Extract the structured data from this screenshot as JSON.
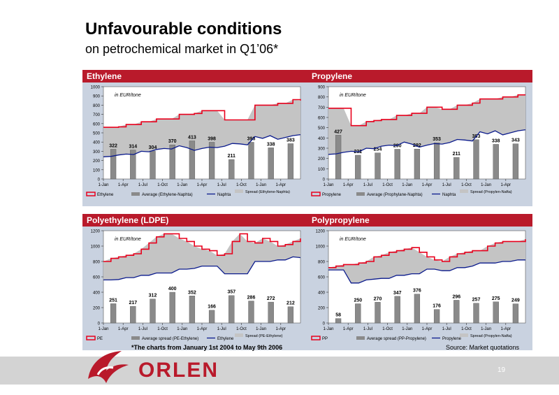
{
  "header": {
    "title": "Unfavourable conditions",
    "subtitle": "on petrochemical market in Q1’06*"
  },
  "footer": {
    "note": "*The charts from January 1st 2004 to May 9th 2006",
    "source": "Source: Market quotations",
    "brand": "ORLEN",
    "page": "19"
  },
  "colors": {
    "price_line": "#e8001c",
    "spread_fill": "#c4c4c4",
    "avg_bar": "#8a8a8a",
    "feed_line": "#0a1a8c",
    "header_bg": "#b91a2b",
    "panel_bg": "#c9d2e0",
    "plot_bg": "#ffffff"
  },
  "chart_data": [
    {
      "id": "ethylene",
      "type": "area",
      "title": "Ethylene",
      "unit_note": "in EUR/tone",
      "ylim": [
        0,
        1000
      ],
      "yticks": [
        0,
        100,
        200,
        300,
        400,
        500,
        600,
        700,
        800,
        900,
        1000
      ],
      "xticks": [
        "1-Jan",
        "1-Apr",
        "1-Jul",
        "1-Oct",
        "1-Jan",
        "1-Apr",
        "1-Jul",
        "1-Oct",
        "1-Jan",
        "1-Apr"
      ],
      "legend": {
        "price": "Ethylene",
        "avg": "Average (Ethylene-Naphta)",
        "feed": "Naphta",
        "spread": "Spread (Ethylene-Naphta)"
      },
      "price": [
        560,
        560,
        565,
        590,
        590,
        620,
        620,
        650,
        650,
        650,
        700,
        700,
        710,
        740,
        740,
        740,
        640,
        640,
        640,
        640,
        800,
        800,
        800,
        820,
        820,
        860,
        850
      ],
      "feed": [
        240,
        245,
        260,
        270,
        265,
        300,
        295,
        320,
        330,
        325,
        360,
        340,
        310,
        330,
        345,
        340,
        355,
        385,
        380,
        370,
        460,
        440,
        470,
        430,
        450,
        470,
        480
      ],
      "quarterly_avg": [
        {
          "x": 0.5,
          "value": 322
        },
        {
          "x": 1.5,
          "value": 314
        },
        {
          "x": 2.5,
          "value": 304
        },
        {
          "x": 3.5,
          "value": 370
        },
        {
          "x": 4.5,
          "value": 413
        },
        {
          "x": 5.5,
          "value": 398
        },
        {
          "x": 6.5,
          "value": 211
        },
        {
          "x": 7.5,
          "value": 398
        },
        {
          "x": 8.5,
          "value": 338
        },
        {
          "x": 9.5,
          "value": 383
        }
      ]
    },
    {
      "id": "propylene",
      "type": "area",
      "title": "Propylene",
      "unit_note": "in EUR/tone",
      "ylim": [
        0,
        900
      ],
      "yticks": [
        0,
        100,
        200,
        300,
        400,
        500,
        600,
        700,
        800,
        900
      ],
      "xticks": [
        "1-Jan",
        "1-Apr",
        "1-Jul",
        "1-Oct",
        "1-Jan",
        "1-Apr",
        "1-Jul",
        "1-Oct",
        "1-Jan",
        "1-Apr"
      ],
      "legend": {
        "price": "Propylene",
        "avg": "Average (Prophylane-Naphta)",
        "feed": "Naphta",
        "spread": "Spread (Propylen-Nafta)"
      },
      "price": [
        690,
        690,
        690,
        520,
        520,
        560,
        570,
        580,
        580,
        620,
        620,
        640,
        640,
        700,
        700,
        680,
        680,
        720,
        720,
        740,
        780,
        780,
        780,
        800,
        800,
        820,
        820
      ],
      "feed": [
        240,
        245,
        260,
        270,
        265,
        300,
        295,
        320,
        330,
        325,
        360,
        340,
        310,
        330,
        345,
        340,
        355,
        385,
        380,
        370,
        460,
        440,
        470,
        430,
        450,
        470,
        480
      ],
      "quarterly_avg": [
        {
          "x": 0.5,
          "value": 427
        },
        {
          "x": 1.5,
          "value": 232
        },
        {
          "x": 2.5,
          "value": 254
        },
        {
          "x": 3.5,
          "value": 290
        },
        {
          "x": 4.5,
          "value": 292
        },
        {
          "x": 5.5,
          "value": 353
        },
        {
          "x": 6.5,
          "value": 211
        },
        {
          "x": 7.5,
          "value": 383
        },
        {
          "x": 8.5,
          "value": 338
        },
        {
          "x": 9.5,
          "value": 343
        }
      ]
    },
    {
      "id": "polyethylene",
      "type": "area",
      "title": "Polyethylene (LDPE)",
      "unit_note": "in EUR/tone",
      "ylim": [
        0,
        1200
      ],
      "yticks": [
        0,
        200,
        400,
        600,
        800,
        1000,
        1200
      ],
      "xticks": [
        "1-Jan",
        "1-Apr",
        "1-Jul",
        "1-Oct",
        "1-Jan",
        "1-Apr",
        "1-Jul",
        "1-Oct",
        "1-Jan",
        "1-Apr"
      ],
      "legend": {
        "price": "PE",
        "avg": "Average spread (PE-Ethylene)",
        "feed": "Ethylene",
        "spread": "Spread (PE-Ethylene)"
      },
      "price": [
        800,
        840,
        860,
        880,
        900,
        960,
        1040,
        1120,
        1160,
        1160,
        1100,
        1060,
        1000,
        960,
        940,
        880,
        900,
        1060,
        1160,
        1060,
        1040,
        1100,
        1060,
        1000,
        1020,
        1060,
        1100
      ],
      "feed": [
        560,
        560,
        565,
        590,
        590,
        620,
        620,
        650,
        650,
        650,
        700,
        700,
        710,
        740,
        740,
        740,
        640,
        640,
        640,
        640,
        800,
        800,
        800,
        820,
        820,
        860,
        850
      ],
      "quarterly_avg": [
        {
          "x": 0.5,
          "value": 251
        },
        {
          "x": 1.5,
          "value": 217
        },
        {
          "x": 2.5,
          "value": 312
        },
        {
          "x": 3.5,
          "value": 400
        },
        {
          "x": 4.5,
          "value": 352
        },
        {
          "x": 5.5,
          "value": 166
        },
        {
          "x": 6.5,
          "value": 357
        },
        {
          "x": 7.5,
          "value": 286
        },
        {
          "x": 8.5,
          "value": 272
        },
        {
          "x": 9.5,
          "value": 212
        }
      ]
    },
    {
      "id": "polypropylene",
      "type": "area",
      "title": "Polypropylene",
      "unit_note": "in EUR/tone",
      "ylim": [
        0,
        1200
      ],
      "yticks": [
        0,
        200,
        400,
        600,
        800,
        1000,
        1200
      ],
      "xticks": [
        "1-Jan",
        "1-Apr",
        "1-Jul",
        "1-Oct",
        "1-Jan",
        "1-Apr",
        "1-Jul",
        "1-Oct",
        "1-Jan",
        "1-Apr"
      ],
      "legend": {
        "price": "PP",
        "avg": "Average spread (PP-Propylene)",
        "feed": "Propylene",
        "spread": "Spread (Propylen-Nafta)"
      },
      "price": [
        720,
        740,
        760,
        760,
        780,
        800,
        860,
        880,
        920,
        940,
        960,
        980,
        920,
        860,
        820,
        800,
        860,
        900,
        920,
        940,
        940,
        1000,
        1040,
        1060,
        1060,
        1060,
        1090
      ],
      "feed": [
        690,
        690,
        690,
        520,
        520,
        560,
        570,
        580,
        580,
        620,
        620,
        640,
        640,
        700,
        700,
        680,
        680,
        720,
        720,
        740,
        780,
        780,
        780,
        800,
        800,
        820,
        820
      ],
      "quarterly_avg": [
        {
          "x": 0.5,
          "value": 58
        },
        {
          "x": 1.5,
          "value": 250
        },
        {
          "x": 2.5,
          "value": 270
        },
        {
          "x": 3.5,
          "value": 347
        },
        {
          "x": 4.5,
          "value": 376
        },
        {
          "x": 5.5,
          "value": 176
        },
        {
          "x": 6.5,
          "value": 296
        },
        {
          "x": 7.5,
          "value": 257
        },
        {
          "x": 8.5,
          "value": 275
        },
        {
          "x": 9.5,
          "value": 249
        }
      ]
    }
  ]
}
